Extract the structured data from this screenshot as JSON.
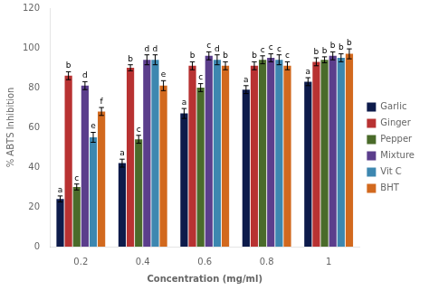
{
  "chart_data": {
    "type": "bar",
    "xlabel": "Concentration (mg/ml)",
    "ylabel": "% ABTS Inhibition",
    "categories": [
      "0.2",
      "0.4",
      "0.6",
      "0.8",
      "1"
    ],
    "series": [
      {
        "name": "Garlic",
        "color": "#0d1b4b",
        "values": [
          24,
          42,
          67,
          79,
          83
        ],
        "errors": [
          1.5,
          2.0,
          2.5,
          2.0,
          2.0
        ],
        "bar_labels": [
          "a",
          "a",
          "a",
          "a",
          "a"
        ]
      },
      {
        "name": "Ginger",
        "color": "#b83232",
        "values": [
          86,
          90,
          91,
          91,
          93
        ],
        "errors": [
          2.0,
          1.5,
          2.0,
          2.0,
          2.0
        ],
        "bar_labels": [
          "b",
          "b",
          "b",
          "b",
          "b"
        ]
      },
      {
        "name": "Pepper",
        "color": "#4a6b2a",
        "values": [
          30,
          54,
          80,
          94,
          94
        ],
        "errors": [
          1.5,
          2.0,
          2.0,
          2.0,
          1.5
        ],
        "bar_labels": [
          "c",
          "c",
          "c",
          "c",
          "b"
        ]
      },
      {
        "name": "Mixture",
        "color": "#5b3e8c",
        "values": [
          81,
          94,
          96,
          95,
          96
        ],
        "errors": [
          2.0,
          2.5,
          2.0,
          2.0,
          2.0
        ],
        "bar_labels": [
          "d",
          "d",
          "c",
          "c",
          "b"
        ]
      },
      {
        "name": "Vit C",
        "color": "#3d87b0",
        "values": [
          55,
          94,
          94,
          94,
          95
        ],
        "errors": [
          2.5,
          2.5,
          2.5,
          2.5,
          2.0
        ],
        "bar_labels": [
          "e",
          "d",
          "d",
          "c",
          "b"
        ]
      },
      {
        "name": "BHT",
        "color": "#d2691e",
        "values": [
          68,
          81,
          91,
          91,
          97
        ],
        "errors": [
          2.0,
          2.5,
          2.0,
          2.0,
          2.5
        ],
        "bar_labels": [
          "f",
          "e",
          "b",
          "c",
          "b"
        ]
      }
    ],
    "ylim": [
      0,
      120
    ],
    "yticks": [
      0,
      20,
      40,
      60,
      80,
      100,
      120
    ],
    "grid": false,
    "legend": "right"
  }
}
